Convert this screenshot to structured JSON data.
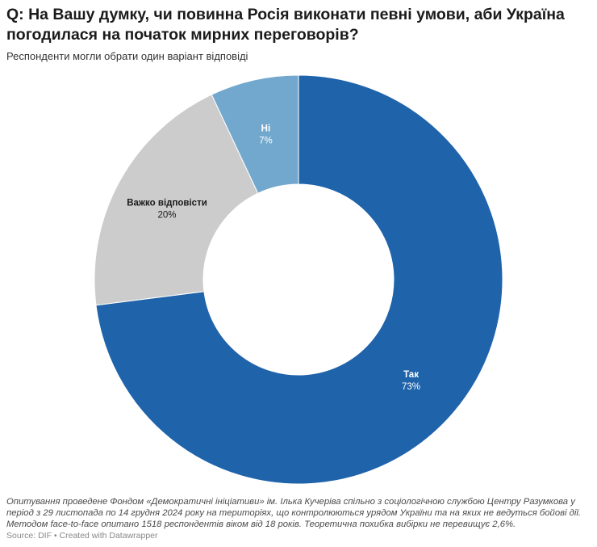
{
  "title": "Q: На Вашу думку, чи повинна Росія виконати певні умови, аби Україна погодилася на початок мирних переговорів?",
  "subtitle": "Респонденти могли обрати один варіант відповіді",
  "notes": "Опитування проведене Фондом «Демократичні ініціативи» ім. Ілька Кучеріва спільно з соціологічною службою Центру Разумкова у період з 29 листопада по 14 грудня 2024 року на територіях, що контролюються урядом України та на яких не ведуться бойові дії. Методом face-to-face опитано 1518 респондентів віком від 18 років. Теоретична похибка вибірки не перевищує 2,6%.",
  "source": "Source: DIF • Created with Datawrapper",
  "chart_data": {
    "type": "pie",
    "donut": true,
    "categories": [
      "Так",
      "Важко відповісти",
      "Ні"
    ],
    "values": [
      73,
      20,
      7
    ],
    "value_labels": [
      "73%",
      "20%",
      "7%"
    ],
    "colors": [
      "#1f63ab",
      "#cccccc",
      "#72a8cd"
    ],
    "label_colors": [
      "#ffffff",
      "#1a1a1a",
      "#ffffff"
    ]
  }
}
